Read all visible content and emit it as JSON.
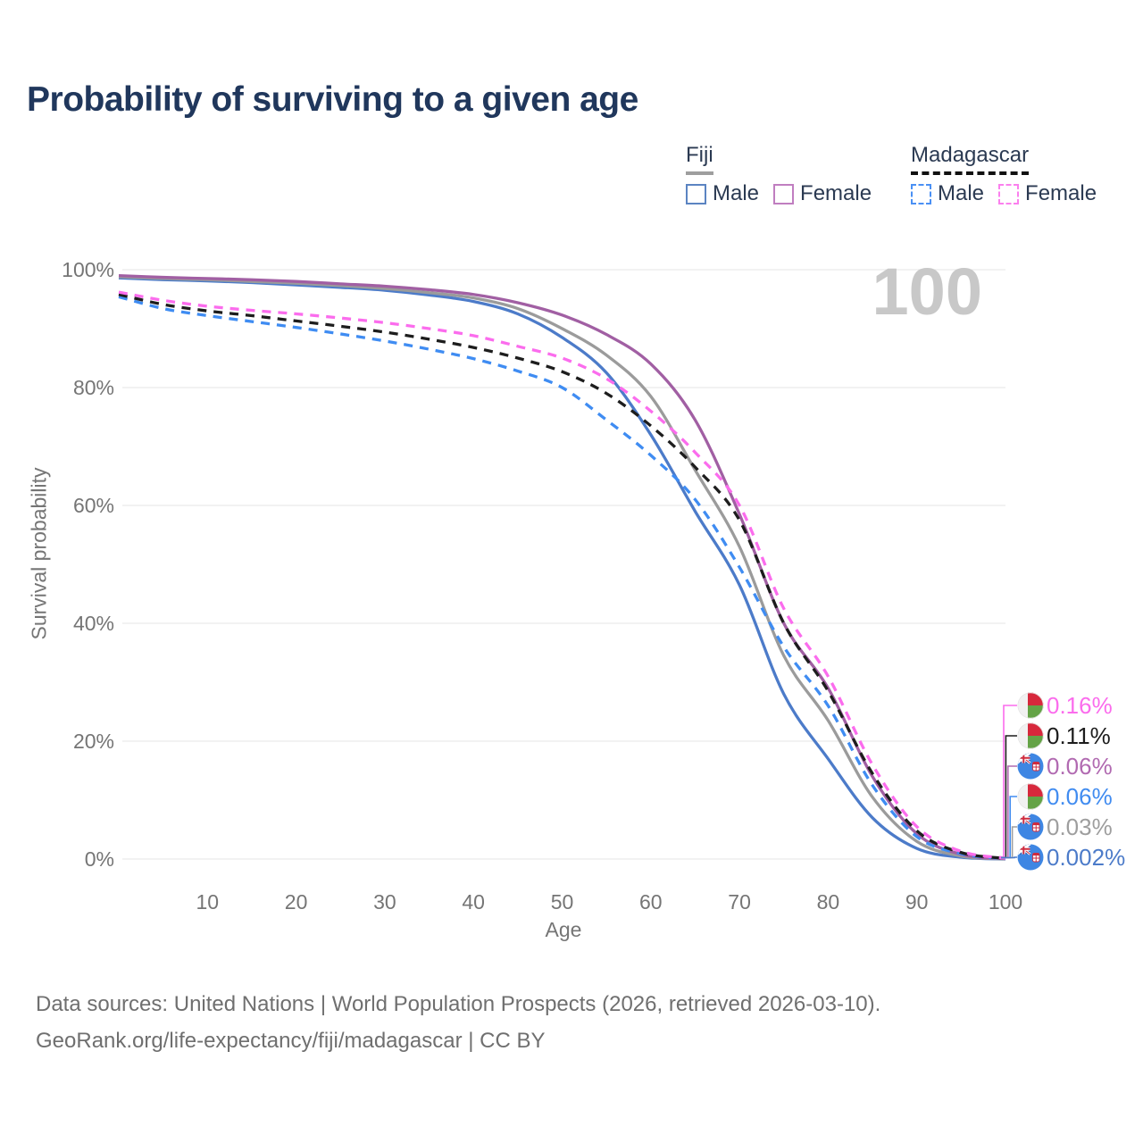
{
  "title": "Probability of surviving to a given age",
  "watermark": "100",
  "legend": {
    "groups": [
      {
        "name": "Fiji",
        "underline_style": "solid",
        "underline_color": "#9e9e9e",
        "items": [
          {
            "label": "Male",
            "color": "#5b84c2",
            "dashed": false
          },
          {
            "label": "Female",
            "color": "#c07ec0",
            "dashed": false
          }
        ]
      },
      {
        "name": "Madagascar",
        "underline_style": "dashed",
        "underline_color": "#111111",
        "items": [
          {
            "label": "Male",
            "color": "#4a90f4",
            "dashed": true
          },
          {
            "label": "Female",
            "color": "#fb80ee",
            "dashed": true
          }
        ]
      }
    ]
  },
  "chart_data": {
    "type": "line",
    "title": "Probability of surviving to a given age",
    "xlabel": "Age",
    "ylabel": "Survival probability",
    "xlim": [
      0,
      100
    ],
    "ylim": [
      0,
      100
    ],
    "grid": "horizontal-only",
    "xticks": [
      10,
      20,
      30,
      40,
      50,
      60,
      70,
      80,
      90,
      100
    ],
    "yticks": [
      0,
      20,
      40,
      60,
      80,
      100
    ],
    "ytick_suffix": "%",
    "x": [
      0,
      5,
      10,
      15,
      20,
      25,
      30,
      35,
      40,
      45,
      50,
      55,
      60,
      65,
      70,
      75,
      80,
      85,
      90,
      95,
      100
    ],
    "series": [
      {
        "name": "Fiji Male",
        "color": "#4c7bc9",
        "dashed": false,
        "values": [
          98.6,
          98.3,
          98.1,
          97.8,
          97.4,
          97.0,
          96.5,
          95.7,
          94.6,
          92.5,
          88.5,
          82.5,
          72.0,
          59.0,
          46.5,
          28.0,
          17.0,
          7.0,
          1.8,
          0.3,
          0.002
        ]
      },
      {
        "name": "Fiji Both sexes",
        "color": "#9b9b9b",
        "dashed": false,
        "values": [
          98.8,
          98.5,
          98.3,
          98.0,
          97.7,
          97.3,
          96.8,
          96.1,
          95.2,
          93.4,
          90.0,
          85.5,
          78.5,
          66.0,
          53.0,
          34.5,
          23.5,
          10.5,
          3.0,
          0.5,
          0.03
        ]
      },
      {
        "name": "Fiji Female",
        "color": "#a15fa3",
        "dashed": false,
        "values": [
          99.0,
          98.7,
          98.5,
          98.3,
          98.0,
          97.6,
          97.2,
          96.6,
          95.8,
          94.4,
          92.3,
          89.0,
          84.0,
          74.5,
          58.5,
          40.0,
          29.0,
          14.0,
          4.3,
          0.8,
          0.06
        ]
      },
      {
        "name": "Madagascar Male",
        "color": "#3f8cf2",
        "dashed": true,
        "values": [
          95.4,
          93.4,
          92.2,
          91.2,
          90.2,
          89.1,
          87.9,
          86.5,
          84.9,
          82.8,
          80.0,
          74.5,
          68.5,
          61.0,
          49.5,
          36.0,
          26.0,
          12.5,
          3.8,
          0.9,
          0.06
        ]
      },
      {
        "name": "Madagascar Both sexes",
        "color": "#1d1d1d",
        "dashed": true,
        "values": [
          95.8,
          94.1,
          93.0,
          92.2,
          91.3,
          90.4,
          89.4,
          88.2,
          86.8,
          85.0,
          82.7,
          79.0,
          73.5,
          66.5,
          57.5,
          40.0,
          28.5,
          14.5,
          4.8,
          1.1,
          0.11
        ]
      },
      {
        "name": "Madagascar Female",
        "color": "#fb6ced",
        "dashed": true,
        "values": [
          96.2,
          94.8,
          93.8,
          93.1,
          92.5,
          91.8,
          91.0,
          90.0,
          88.8,
          87.0,
          85.0,
          81.5,
          76.0,
          69.0,
          60.0,
          42.5,
          31.0,
          16.0,
          5.5,
          1.3,
          0.16
        ]
      }
    ],
    "end_labels": [
      {
        "flag": "madagascar",
        "series": "Madagascar Female",
        "value": "0.16%",
        "color": "#fb6ced"
      },
      {
        "flag": "madagascar",
        "series": "Madagascar Both sexes",
        "value": "0.11%",
        "color": "#1c1c1c"
      },
      {
        "flag": "fiji",
        "series": "Fiji Female",
        "value": "0.06%",
        "color": "#b16ab1"
      },
      {
        "flag": "madagascar",
        "series": "Madagascar Male",
        "value": "0.06%",
        "color": "#418cf0"
      },
      {
        "flag": "fiji",
        "series": "Fiji Both sexes",
        "value": "0.03%",
        "color": "#9e9e9e"
      },
      {
        "flag": "fiji",
        "series": "Fiji Male",
        "value": "0.002%",
        "color": "#4c7bc9"
      }
    ],
    "legend_position": "top-right"
  },
  "footer": {
    "line1": "Data sources: United Nations | World Population Prospects (2026, retrieved 2026-03-10).",
    "line2": "GeoRank.org/life-expectancy/fiji/madagascar | CC BY"
  }
}
